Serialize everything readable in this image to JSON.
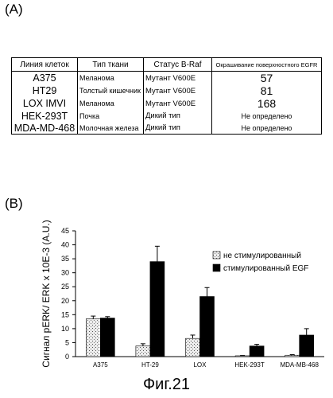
{
  "panel_a": {
    "label": "(A)",
    "headers": [
      "Линия клеток",
      "Тип ткани",
      "Статус B-Raf",
      "Окрашивание поверхностного EGFR"
    ],
    "rows": [
      [
        "A375",
        "Меланома",
        "Мутант V600E",
        "57"
      ],
      [
        "HT29",
        "Толстый кишечник",
        "Мутант V600E",
        "81"
      ],
      [
        "LOX IMVI",
        "Меланома",
        "Мутант V600E",
        "168"
      ],
      [
        "HEK-293T",
        "Почка",
        "Дикий тип",
        "Не определено"
      ],
      [
        "MDA-MD-468",
        "Молочная железа",
        "Дикий тип",
        "Не определено"
      ]
    ]
  },
  "panel_b": {
    "label": "(B)"
  },
  "chart_data": {
    "type": "bar",
    "categories": [
      "A375",
      "HT-29",
      "LOX",
      "HEK-293T",
      "MDA-MB-468"
    ],
    "series": [
      {
        "name": "не стимулированный",
        "values": [
          13.5,
          3.8,
          6.5,
          0.3,
          0.5
        ],
        "errors": [
          1.0,
          0.8,
          1.2,
          0.1,
          0.2
        ],
        "color": "#d8d8d8"
      },
      {
        "name": "стимулированный EGF",
        "values": [
          13.8,
          34.0,
          21.5,
          3.8,
          7.7
        ],
        "errors": [
          0.5,
          5.5,
          3.2,
          0.6,
          2.3
        ],
        "color": "#000000"
      }
    ],
    "ylabel": "Сигнал pERK/ ERK x 10E-3 (A.U.)",
    "xlabel": "",
    "ylim": [
      0,
      45
    ],
    "yticks": [
      "0",
      "5",
      "10",
      "15",
      "20",
      "25",
      "30",
      "35",
      "40",
      "45"
    ],
    "legend": "top-right",
    "grid": false
  },
  "caption": "Фиг.21"
}
